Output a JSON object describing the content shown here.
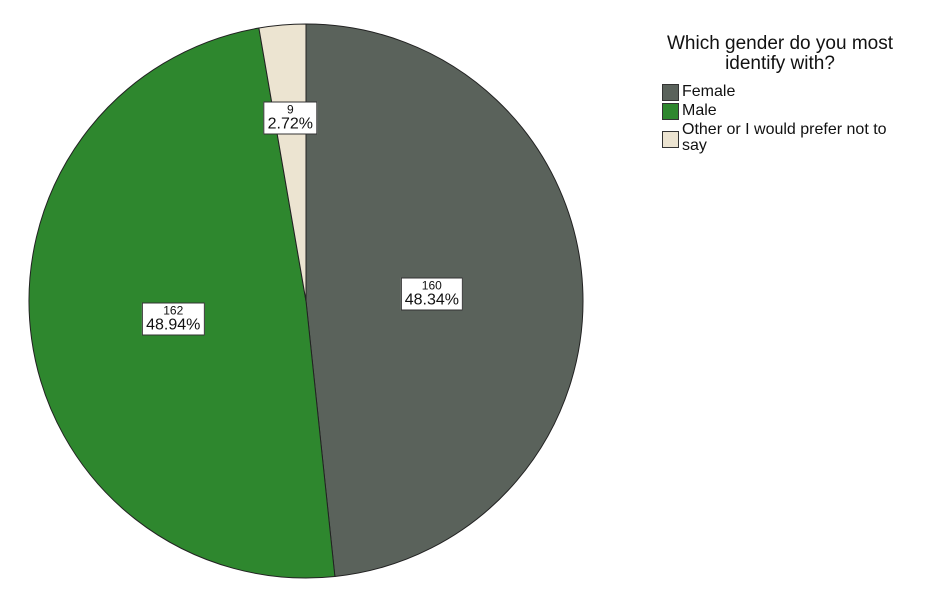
{
  "chart_data": {
    "type": "pie",
    "title": "",
    "legend_title": "Which gender do you most identify with?",
    "legend_placement": "top-right",
    "slices": [
      {
        "name": "Female",
        "count": "160",
        "percent": "48.34%",
        "value": 160,
        "color": "#5a625b"
      },
      {
        "name": "Male",
        "count": "162",
        "percent": "48.94%",
        "value": 162,
        "color": "#2e872e"
      },
      {
        "name": "Other or I would prefer not to say",
        "count": "9",
        "percent": "2.72%",
        "value": 9,
        "color": "#ece4d1"
      }
    ]
  }
}
